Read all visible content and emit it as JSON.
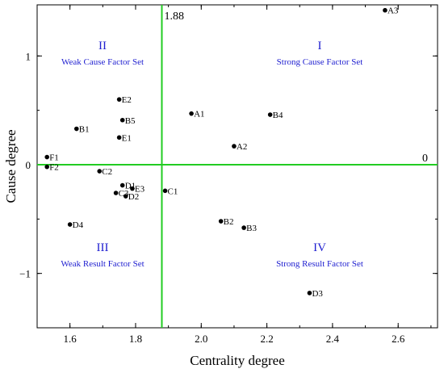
{
  "chart_data": {
    "type": "scatter",
    "xlabel": "Centrality degree",
    "ylabel": "Cause degree",
    "xlim": [
      1.5,
      2.72
    ],
    "ylim": [
      -1.5,
      1.47
    ],
    "xticks": [
      1.6,
      1.8,
      2.0,
      2.2,
      2.4,
      2.6
    ],
    "xtick_labels": [
      "1.6",
      "1.8",
      "2.0",
      "2.2",
      "2.4",
      "2.6"
    ],
    "yticks": [
      -1,
      0,
      1
    ],
    "ytick_labels": [
      "−1",
      "0",
      "1"
    ],
    "grid": false,
    "reference_lines": {
      "x": 1.88,
      "x_label": "1.88",
      "y": 0,
      "y_label": "0",
      "color": "#22cc22"
    },
    "quadrants": [
      {
        "numeral": "I",
        "label": "Strong Cause Factor Set"
      },
      {
        "numeral": "II",
        "label": "Weak Cause Factor Set"
      },
      {
        "numeral": "III",
        "label": "Weak Result Factor Set"
      },
      {
        "numeral": "IV",
        "label": "Strong Result Factor Set"
      }
    ],
    "quadrant_color": "#1f1fd0",
    "points": [
      {
        "label": "A3",
        "x": 2.56,
        "y": 1.42
      },
      {
        "label": "E2",
        "x": 1.75,
        "y": 0.6
      },
      {
        "label": "A1",
        "x": 1.97,
        "y": 0.47
      },
      {
        "label": "B4",
        "x": 2.21,
        "y": 0.46
      },
      {
        "label": "B5",
        "x": 1.76,
        "y": 0.41
      },
      {
        "label": "B1",
        "x": 1.62,
        "y": 0.33
      },
      {
        "label": "E1",
        "x": 1.75,
        "y": 0.25
      },
      {
        "label": "A2",
        "x": 2.1,
        "y": 0.17
      },
      {
        "label": "F1",
        "x": 1.53,
        "y": 0.07
      },
      {
        "label": "F2",
        "x": 1.53,
        "y": -0.02
      },
      {
        "label": "C2",
        "x": 1.69,
        "y": -0.06
      },
      {
        "label": "D1",
        "x": 1.76,
        "y": -0.19
      },
      {
        "label": "E3",
        "x": 1.79,
        "y": -0.22
      },
      {
        "label": "C1",
        "x": 1.89,
        "y": -0.24
      },
      {
        "label": "C3",
        "x": 1.74,
        "y": -0.26
      },
      {
        "label": "D2",
        "x": 1.77,
        "y": -0.29
      },
      {
        "label": "B2",
        "x": 2.06,
        "y": -0.52
      },
      {
        "label": "D4",
        "x": 1.6,
        "y": -0.55
      },
      {
        "label": "B3",
        "x": 2.13,
        "y": -0.58
      },
      {
        "label": "D3",
        "x": 2.33,
        "y": -1.18
      }
    ]
  }
}
